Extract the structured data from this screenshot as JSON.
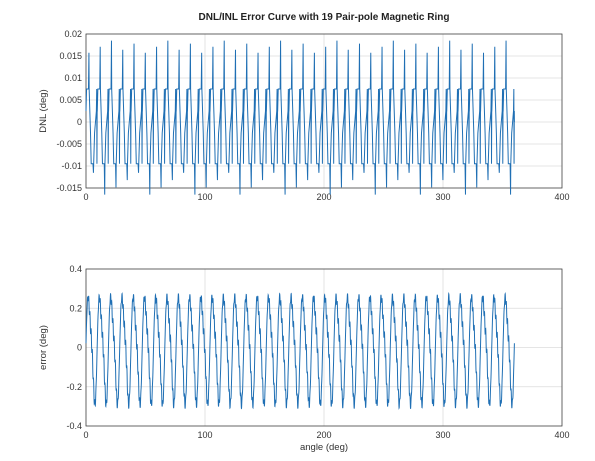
{
  "chart_data": [
    {
      "type": "line",
      "title": "DNL/INL Error Curve with 19 Pair-pole Magnetic Ring",
      "xlabel": "",
      "ylabel": "DNL (deg)",
      "xlim": [
        0,
        400
      ],
      "ylim": [
        -0.015,
        0.02
      ],
      "xticks": [
        0,
        100,
        200,
        300,
        400
      ],
      "xtick_labels": [
        "0",
        "100",
        "200",
        "300",
        "400"
      ],
      "yticks": [
        0.02,
        0.015,
        0.01,
        0.005,
        0,
        -0.005,
        -0.01,
        -0.015
      ],
      "ytick_labels": [
        "0.02",
        "0.015",
        "0.01",
        "0.005",
        "0",
        "-0.005",
        "-0.01",
        "-0.015"
      ],
      "grid": true,
      "series": [
        {
          "color": "#1f6fb4",
          "x_range": [
            0,
            360
          ],
          "description_values": {
            "level_high": 0.0075,
            "level_mid_high": 0.0025,
            "level_mid_low": -0.0025,
            "level_low": -0.0095,
            "spike_peak": 0.0185,
            "spike_trough": -0.0165,
            "periods": 38
          }
        }
      ]
    },
    {
      "type": "line",
      "title": "",
      "xlabel": "angle (deg)",
      "ylabel": "error (deg)",
      "xlim": [
        0,
        400
      ],
      "ylim": [
        -0.4,
        0.4
      ],
      "xticks": [
        0,
        100,
        200,
        300,
        400
      ],
      "xtick_labels": [
        "0",
        "100",
        "200",
        "300",
        "400"
      ],
      "yticks": [
        0.4,
        0.2,
        0,
        -0.2,
        -0.4
      ],
      "ytick_labels": [
        "0.4",
        "0.2",
        "0",
        "-0.2",
        "-0.4"
      ],
      "grid": true,
      "series": [
        {
          "color": "#1f6fb4",
          "x_range": [
            0,
            360
          ],
          "amplitude": 0.31,
          "periods": 38
        }
      ]
    }
  ]
}
